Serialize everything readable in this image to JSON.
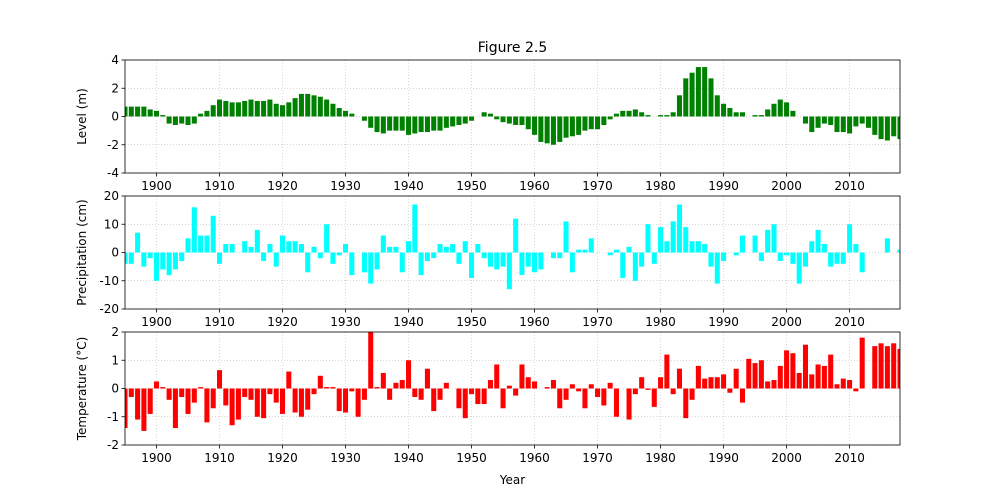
{
  "chart_data": [
    {
      "type": "bar",
      "title": "Figure 2.5",
      "ylabel": "Level (m)",
      "color": "#008000",
      "grid": true,
      "xlim": [
        1895,
        2018
      ],
      "xticks": [
        1900,
        1910,
        1920,
        1930,
        1940,
        1950,
        1960,
        1970,
        1980,
        1990,
        2000,
        2010
      ],
      "ylim": [
        -4,
        4
      ],
      "yticks": [
        -4,
        -2,
        0,
        2,
        4
      ],
      "x": [
        1895,
        1896,
        1897,
        1898,
        1899,
        1900,
        1901,
        1902,
        1903,
        1904,
        1905,
        1906,
        1907,
        1908,
        1909,
        1910,
        1911,
        1912,
        1913,
        1914,
        1915,
        1916,
        1917,
        1918,
        1919,
        1920,
        1921,
        1922,
        1923,
        1924,
        1925,
        1926,
        1927,
        1928,
        1929,
        1930,
        1931,
        1932,
        1933,
        1934,
        1935,
        1936,
        1937,
        1938,
        1939,
        1940,
        1941,
        1942,
        1943,
        1944,
        1945,
        1946,
        1947,
        1948,
        1949,
        1950,
        1951,
        1952,
        1953,
        1954,
        1955,
        1956,
        1957,
        1958,
        1959,
        1960,
        1961,
        1962,
        1963,
        1964,
        1965,
        1966,
        1967,
        1968,
        1969,
        1970,
        1971,
        1972,
        1973,
        1974,
        1975,
        1976,
        1977,
        1978,
        1979,
        1980,
        1981,
        1982,
        1983,
        1984,
        1985,
        1986,
        1987,
        1988,
        1989,
        1990,
        1991,
        1992,
        1993,
        1994,
        1995,
        1996,
        1997,
        1998,
        1999,
        2000,
        2001,
        2002,
        2003,
        2004,
        2005,
        2006,
        2007,
        2008,
        2009,
        2010,
        2011,
        2012,
        2013,
        2014,
        2015,
        2016,
        2017,
        2018
      ],
      "values": [
        0.7,
        0.7,
        0.7,
        0.7,
        0.5,
        0.4,
        0.1,
        -0.5,
        -0.6,
        -0.5,
        -0.6,
        -0.5,
        0.2,
        0.4,
        0.8,
        1.2,
        1.1,
        1.0,
        1.0,
        1.1,
        1.2,
        1.1,
        1.1,
        1.2,
        0.9,
        0.8,
        1.0,
        1.3,
        1.6,
        1.6,
        1.5,
        1.4,
        1.2,
        0.9,
        0.6,
        0.4,
        0.2,
        0.0,
        -0.3,
        -0.8,
        -1.1,
        -1.2,
        -1.0,
        -1.0,
        -1.0,
        -1.3,
        -1.2,
        -1.1,
        -1.1,
        -1.0,
        -1.0,
        -0.8,
        -0.7,
        -0.6,
        -0.5,
        -0.3,
        0.0,
        0.3,
        0.2,
        -0.2,
        -0.4,
        -0.5,
        -0.6,
        -0.6,
        -0.9,
        -1.3,
        -1.8,
        -1.9,
        -2.0,
        -1.8,
        -1.5,
        -1.4,
        -1.3,
        -1.0,
        -0.9,
        -0.9,
        -0.6,
        -0.2,
        0.2,
        0.4,
        0.4,
        0.5,
        0.3,
        0.1,
        0.0,
        0.1,
        0.1,
        0.3,
        1.5,
        2.7,
        3.1,
        3.5,
        3.5,
        2.7,
        1.5,
        0.9,
        0.6,
        0.3,
        0.3,
        0.0,
        0.1,
        0.1,
        0.5,
        0.9,
        1.2,
        1.0,
        0.4,
        0.0,
        -0.5,
        -1.1,
        -0.8,
        -0.5,
        -0.6,
        -1.1,
        -1.1,
        -1.2,
        -0.7,
        -0.5,
        -0.8,
        -1.3,
        -1.6,
        -1.7,
        -1.4,
        -1.6
      ]
    },
    {
      "type": "bar",
      "ylabel": "Precipitation (cm)",
      "color": "#00ffff",
      "grid": true,
      "xlim": [
        1895,
        2018
      ],
      "xticks": [
        1900,
        1910,
        1920,
        1930,
        1940,
        1950,
        1960,
        1970,
        1980,
        1990,
        2000,
        2010
      ],
      "ylim": [
        -20,
        20
      ],
      "yticks": [
        -20,
        -10,
        0,
        10,
        20
      ],
      "x": [
        1895,
        1896,
        1897,
        1898,
        1899,
        1900,
        1901,
        1902,
        1903,
        1904,
        1905,
        1906,
        1907,
        1908,
        1909,
        1910,
        1911,
        1912,
        1913,
        1914,
        1915,
        1916,
        1917,
        1918,
        1919,
        1920,
        1921,
        1922,
        1923,
        1924,
        1925,
        1926,
        1927,
        1928,
        1929,
        1930,
        1931,
        1932,
        1933,
        1934,
        1935,
        1936,
        1937,
        1938,
        1939,
        1940,
        1941,
        1942,
        1943,
        1944,
        1945,
        1946,
        1947,
        1948,
        1949,
        1950,
        1951,
        1952,
        1953,
        1954,
        1955,
        1956,
        1957,
        1958,
        1959,
        1960,
        1961,
        1962,
        1963,
        1964,
        1965,
        1966,
        1967,
        1968,
        1969,
        1970,
        1971,
        1972,
        1973,
        1974,
        1975,
        1976,
        1977,
        1978,
        1979,
        1980,
        1981,
        1982,
        1983,
        1984,
        1985,
        1986,
        1987,
        1988,
        1989,
        1990,
        1991,
        1992,
        1993,
        1994,
        1995,
        1996,
        1997,
        1998,
        1999,
        2000,
        2001,
        2002,
        2003,
        2004,
        2005,
        2006,
        2007,
        2008,
        2009,
        2010,
        2011,
        2012,
        2013,
        2014,
        2015,
        2016,
        2017,
        2018
      ],
      "values": [
        -4,
        -4,
        7,
        -5,
        -2,
        -10,
        -6,
        -8,
        -6,
        -3,
        5,
        16,
        6,
        6,
        13,
        -4,
        3,
        3,
        0,
        4,
        2,
        8,
        -3,
        3,
        -5,
        6,
        4,
        4,
        3,
        -7,
        2,
        -2,
        10,
        -4,
        -1,
        3,
        -8,
        0,
        -7,
        -11,
        -6,
        6,
        2,
        2,
        -7,
        4,
        17,
        -8,
        -3,
        -2,
        3,
        2,
        3,
        -4,
        4,
        -9,
        3,
        -2,
        -5,
        -6,
        -5,
        -13,
        12,
        -8,
        -5,
        -7,
        -6,
        0,
        -2,
        -2,
        11,
        -7,
        1,
        1,
        5,
        0,
        0,
        -1,
        1,
        -9,
        2,
        -10,
        -5,
        10,
        -4,
        9,
        4,
        11,
        17,
        9,
        4,
        4,
        3,
        -5,
        -11,
        -3,
        0,
        -1,
        6,
        0,
        6,
        -3,
        8,
        10,
        -3,
        -1,
        -4,
        -11,
        -5,
        4,
        8,
        3,
        -5,
        -4,
        -4,
        10,
        3,
        -7,
        0,
        0,
        0,
        5,
        0,
        1
      ]
    },
    {
      "type": "bar",
      "ylabel": "Temperature (°C)",
      "xlabel": "Year",
      "color": "#ff0000",
      "grid": true,
      "xlim": [
        1895,
        2018
      ],
      "xticks": [
        1900,
        1910,
        1920,
        1930,
        1940,
        1950,
        1960,
        1970,
        1980,
        1990,
        2000,
        2010
      ],
      "ylim": [
        -2,
        2
      ],
      "yticks": [
        -2,
        -1,
        0,
        1,
        2
      ],
      "x": [
        1895,
        1896,
        1897,
        1898,
        1899,
        1900,
        1901,
        1902,
        1903,
        1904,
        1905,
        1906,
        1907,
        1908,
        1909,
        1910,
        1911,
        1912,
        1913,
        1914,
        1915,
        1916,
        1917,
        1918,
        1919,
        1920,
        1921,
        1922,
        1923,
        1924,
        1925,
        1926,
        1927,
        1928,
        1929,
        1930,
        1931,
        1932,
        1933,
        1934,
        1935,
        1936,
        1937,
        1938,
        1939,
        1940,
        1941,
        1942,
        1943,
        1944,
        1945,
        1946,
        1947,
        1948,
        1949,
        1950,
        1951,
        1952,
        1953,
        1954,
        1955,
        1956,
        1957,
        1958,
        1959,
        1960,
        1961,
        1962,
        1963,
        1964,
        1965,
        1966,
        1967,
        1968,
        1969,
        1970,
        1971,
        1972,
        1973,
        1974,
        1975,
        1976,
        1977,
        1978,
        1979,
        1980,
        1981,
        1982,
        1983,
        1984,
        1985,
        1986,
        1987,
        1988,
        1989,
        1990,
        1991,
        1992,
        1993,
        1994,
        1995,
        1996,
        1997,
        1998,
        1999,
        2000,
        2001,
        2002,
        2003,
        2004,
        2005,
        2006,
        2007,
        2008,
        2009,
        2010,
        2011,
        2012,
        2013,
        2014,
        2015,
        2016,
        2017,
        2018
      ],
      "values": [
        -1.4,
        -0.3,
        -1.1,
        -1.5,
        -0.9,
        0.25,
        0.05,
        -0.4,
        -1.4,
        -0.3,
        -0.9,
        -0.5,
        0.05,
        -1.2,
        -0.7,
        0.65,
        -0.6,
        -1.3,
        -1.1,
        -0.3,
        -0.4,
        -1.0,
        -1.05,
        -0.2,
        -0.5,
        -0.9,
        0.6,
        -0.85,
        -1.0,
        -0.75,
        -0.2,
        0.45,
        0.05,
        0.05,
        -0.8,
        -0.85,
        -0.1,
        -1.0,
        -0.4,
        2.0,
        0.05,
        0.55,
        -0.4,
        0.2,
        0.3,
        1.0,
        -0.3,
        -0.4,
        0.7,
        -0.8,
        -0.4,
        0.2,
        0.0,
        -0.7,
        -1.05,
        -0.2,
        -0.55,
        -0.55,
        0.3,
        0.85,
        -0.7,
        0.1,
        -0.25,
        0.85,
        0.4,
        0.25,
        0.0,
        0.05,
        0.3,
        -0.7,
        -0.4,
        0.15,
        -0.1,
        -0.7,
        0.15,
        -0.3,
        -0.6,
        0.2,
        -1.0,
        0.0,
        -1.1,
        -0.2,
        0.4,
        -0.05,
        -0.65,
        0.4,
        1.2,
        -0.2,
        0.7,
        -1.05,
        -0.4,
        0.8,
        0.35,
        0.4,
        0.4,
        0.5,
        -0.15,
        0.7,
        -0.5,
        1.05,
        0.9,
        1.0,
        0.25,
        0.3,
        0.8,
        1.35,
        1.25,
        0.55,
        1.55,
        0.5,
        0.85,
        0.8,
        1.2,
        0.15,
        0.35,
        0.3,
        -0.1,
        1.8,
        0.0,
        1.5,
        1.6,
        1.5,
        1.6,
        1.4
      ]
    }
  ]
}
